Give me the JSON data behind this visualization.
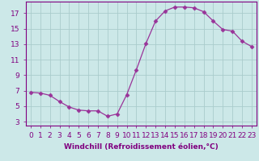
{
  "x": [
    0,
    1,
    2,
    3,
    4,
    5,
    6,
    7,
    8,
    9,
    10,
    11,
    12,
    13,
    14,
    15,
    16,
    17,
    18,
    19,
    20,
    21,
    22,
    23
  ],
  "y": [
    6.8,
    6.7,
    6.4,
    5.6,
    4.9,
    4.5,
    4.4,
    4.4,
    3.7,
    4.0,
    6.5,
    9.7,
    13.1,
    16.0,
    17.3,
    17.8,
    17.8,
    17.7,
    17.2,
    16.0,
    14.9,
    14.7,
    13.4,
    12.7
  ],
  "line_color": "#993399",
  "marker": "D",
  "marker_size": 2.5,
  "bg_color": "#cce8e8",
  "grid_color": "#aacccc",
  "xlabel": "Windchill (Refroidissement éolien,°C)",
  "xlim": [
    -0.5,
    23.5
  ],
  "ylim": [
    2.5,
    18.5
  ],
  "yticks": [
    3,
    5,
    7,
    9,
    11,
    13,
    15,
    17
  ],
  "xticks": [
    0,
    1,
    2,
    3,
    4,
    5,
    6,
    7,
    8,
    9,
    10,
    11,
    12,
    13,
    14,
    15,
    16,
    17,
    18,
    19,
    20,
    21,
    22,
    23
  ],
  "axis_color": "#800080",
  "label_fontsize": 6.5,
  "tick_fontsize": 6.5
}
